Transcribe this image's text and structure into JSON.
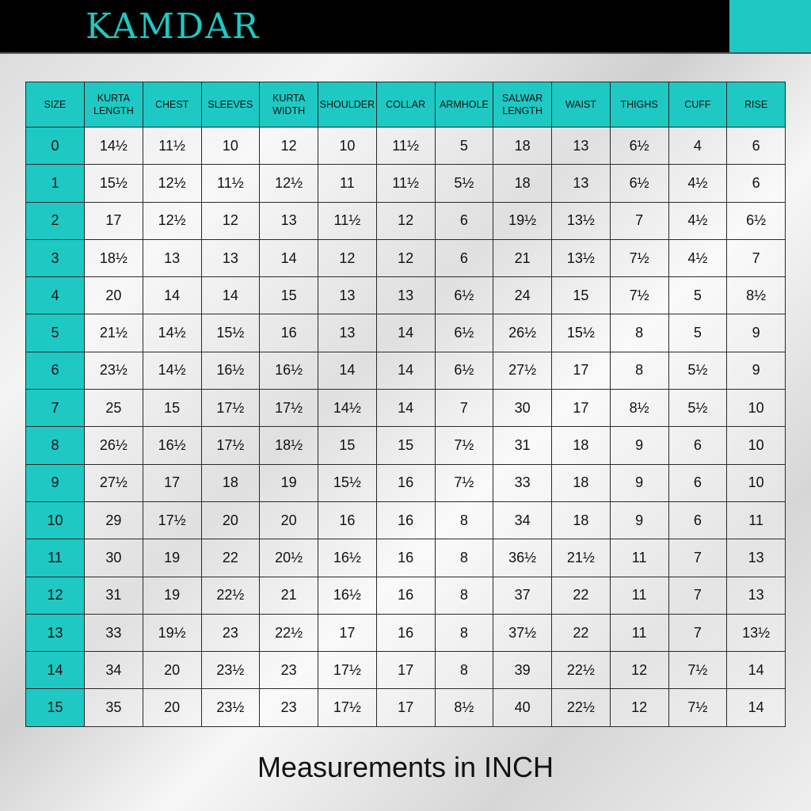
{
  "brand": "KAMDAR",
  "colors": {
    "accent": "#1ec9c4",
    "header_bg": "#000000"
  },
  "table": {
    "headers": [
      "SIZE",
      "KURTA LENGTH",
      "CHEST",
      "SLEEVES",
      "KURTA WIDTH",
      "SHOULDER",
      "COLLAR",
      "ARMHOLE",
      "SALWAR LENGTH",
      "WAIST",
      "THIGHS",
      "CUFF",
      "RISE"
    ],
    "rows": [
      [
        "0",
        "14½",
        "11½",
        "10",
        "12",
        "10",
        "11½",
        "5",
        "18",
        "13",
        "6½",
        "4",
        "6"
      ],
      [
        "1",
        "15½",
        "12½",
        "11½",
        "12½",
        "11",
        "11½",
        "5½",
        "18",
        "13",
        "6½",
        "4½",
        "6"
      ],
      [
        "2",
        "17",
        "12½",
        "12",
        "13",
        "11½",
        "12",
        "6",
        "19½",
        "13½",
        "7",
        "4½",
        "6½"
      ],
      [
        "3",
        "18½",
        "13",
        "13",
        "14",
        "12",
        "12",
        "6",
        "21",
        "13½",
        "7½",
        "4½",
        "7"
      ],
      [
        "4",
        "20",
        "14",
        "14",
        "15",
        "13",
        "13",
        "6½",
        "24",
        "15",
        "7½",
        "5",
        "8½"
      ],
      [
        "5",
        "21½",
        "14½",
        "15½",
        "16",
        "13",
        "14",
        "6½",
        "26½",
        "15½",
        "8",
        "5",
        "9"
      ],
      [
        "6",
        "23½",
        "14½",
        "16½",
        "16½",
        "14",
        "14",
        "6½",
        "27½",
        "17",
        "8",
        "5½",
        "9"
      ],
      [
        "7",
        "25",
        "15",
        "17½",
        "17½",
        "14½",
        "14",
        "7",
        "30",
        "17",
        "8½",
        "5½",
        "10"
      ],
      [
        "8",
        "26½",
        "16½",
        "17½",
        "18½",
        "15",
        "15",
        "7½",
        "31",
        "18",
        "9",
        "6",
        "10"
      ],
      [
        "9",
        "27½",
        "17",
        "18",
        "19",
        "15½",
        "16",
        "7½",
        "33",
        "18",
        "9",
        "6",
        "10"
      ],
      [
        "10",
        "29",
        "17½",
        "20",
        "20",
        "16",
        "16",
        "8",
        "34",
        "18",
        "9",
        "6",
        "11"
      ],
      [
        "11",
        "30",
        "19",
        "22",
        "20½",
        "16½",
        "16",
        "8",
        "36½",
        "21½",
        "11",
        "7",
        "13"
      ],
      [
        "12",
        "31",
        "19",
        "22½",
        "21",
        "16½",
        "16",
        "8",
        "37",
        "22",
        "11",
        "7",
        "13"
      ],
      [
        "13",
        "33",
        "19½",
        "23",
        "22½",
        "17",
        "16",
        "8",
        "37½",
        "22",
        "11",
        "7",
        "13½"
      ],
      [
        "14",
        "34",
        "20",
        "23½",
        "23",
        "17½",
        "17",
        "8",
        "39",
        "22½",
        "12",
        "7½",
        "14"
      ],
      [
        "15",
        "35",
        "20",
        "23½",
        "23",
        "17½",
        "17",
        "8½",
        "40",
        "22½",
        "12",
        "7½",
        "14"
      ]
    ]
  },
  "footer": "Measurements in INCH"
}
